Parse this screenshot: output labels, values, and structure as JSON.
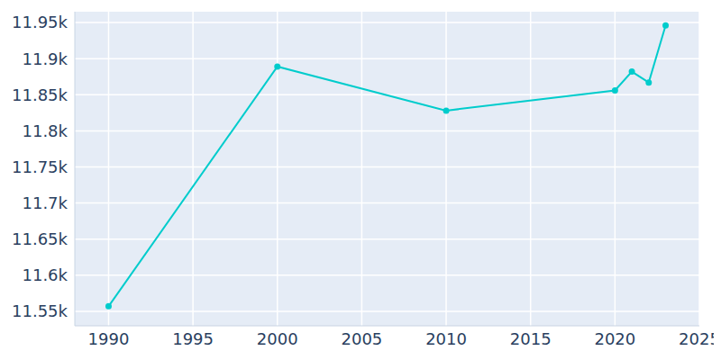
{
  "chart_data": {
    "type": "line",
    "x": [
      1990,
      2000,
      2010,
      2020,
      2021,
      2022,
      2023
    ],
    "values": [
      11557,
      11889,
      11828,
      11856,
      11882,
      11867,
      11946
    ],
    "color": "#00cccc",
    "marker": "circle",
    "xlim": [
      1988,
      2025
    ],
    "xticks": [
      1990,
      1995,
      2000,
      2005,
      2010,
      2015,
      2020,
      2025
    ],
    "ylim": [
      11530,
      11965
    ],
    "yticks": [
      {
        "value": 11550,
        "label": "11.55k"
      },
      {
        "value": 11600,
        "label": "11.6k"
      },
      {
        "value": 11650,
        "label": "11.65k"
      },
      {
        "value": 11700,
        "label": "11.7k"
      },
      {
        "value": 11750,
        "label": "11.75k"
      },
      {
        "value": 11800,
        "label": "11.8k"
      },
      {
        "value": 11850,
        "label": "11.85k"
      },
      {
        "value": 11900,
        "label": "11.9k"
      },
      {
        "value": 11950,
        "label": "11.95k"
      }
    ],
    "grid": true
  }
}
